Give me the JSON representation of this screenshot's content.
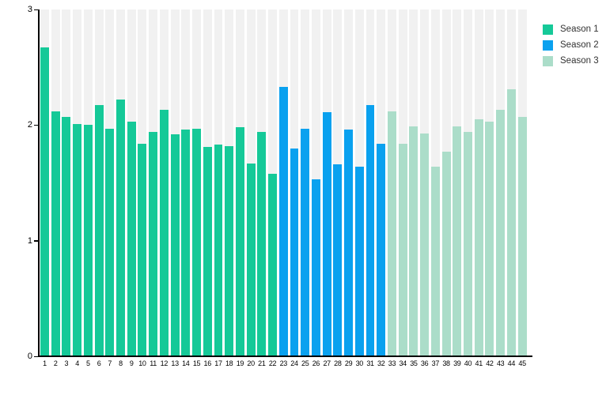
{
  "chart_data": {
    "type": "bar",
    "title": "",
    "xlabel": "",
    "ylabel": "",
    "ylim": [
      0,
      3
    ],
    "yticks": [
      0,
      1,
      2,
      3
    ],
    "grid": false,
    "legend_position": "top-right",
    "background_track_color": "#F1F1F1",
    "axis_color": "#000000",
    "x": [
      1,
      2,
      3,
      4,
      5,
      6,
      7,
      8,
      9,
      10,
      11,
      12,
      13,
      14,
      15,
      16,
      17,
      18,
      19,
      20,
      21,
      22,
      23,
      24,
      25,
      26,
      27,
      28,
      29,
      30,
      31,
      32,
      33,
      34,
      35,
      36,
      37,
      38,
      39,
      40,
      41,
      42,
      43,
      44,
      45
    ],
    "series": [
      {
        "name": "Season 1",
        "color": "#15C998",
        "x_start": 1,
        "values": [
          2.67,
          2.12,
          2.07,
          2.01,
          2.0,
          2.17,
          1.97,
          2.22,
          2.03,
          1.84,
          1.94,
          2.13,
          1.92,
          1.96,
          1.97,
          1.81,
          1.83,
          1.82,
          1.98,
          1.67,
          1.94,
          1.58
        ]
      },
      {
        "name": "Season 2",
        "color": "#0AA1EF",
        "x_start": 23,
        "values": [
          2.33,
          1.8,
          1.97,
          1.53,
          2.11,
          1.66,
          1.96,
          1.64,
          2.17,
          1.84
        ]
      },
      {
        "name": "Season 3",
        "color": "#ABDDC9",
        "x_start": 33,
        "values": [
          2.12,
          1.84,
          1.99,
          1.93,
          1.64,
          1.77,
          1.99,
          1.94,
          2.05,
          2.03,
          2.13,
          2.31,
          2.07
        ]
      }
    ]
  },
  "legend": {
    "items": [
      {
        "label": "Season 1",
        "color": "#15C998"
      },
      {
        "label": "Season 2",
        "color": "#0AA1EF"
      },
      {
        "label": "Season 3",
        "color": "#ABDDC9"
      }
    ]
  }
}
